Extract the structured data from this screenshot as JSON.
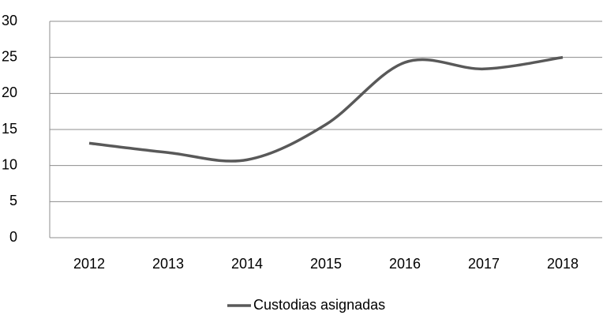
{
  "chart_data": {
    "type": "line",
    "categories": [
      "2012",
      "2013",
      "2014",
      "2015",
      "2016",
      "2017",
      "2018"
    ],
    "series": [
      {
        "name": "Custodias asignadas",
        "color": "#595959",
        "values": [
          13.1,
          11.8,
          10.8,
          15.7,
          24.3,
          23.4,
          25
        ]
      }
    ],
    "ylim": [
      0,
      30
    ],
    "yticks": [
      0,
      5,
      10,
      15,
      20,
      25,
      30
    ],
    "grid": true,
    "smooth": true,
    "legend": "bottom"
  }
}
